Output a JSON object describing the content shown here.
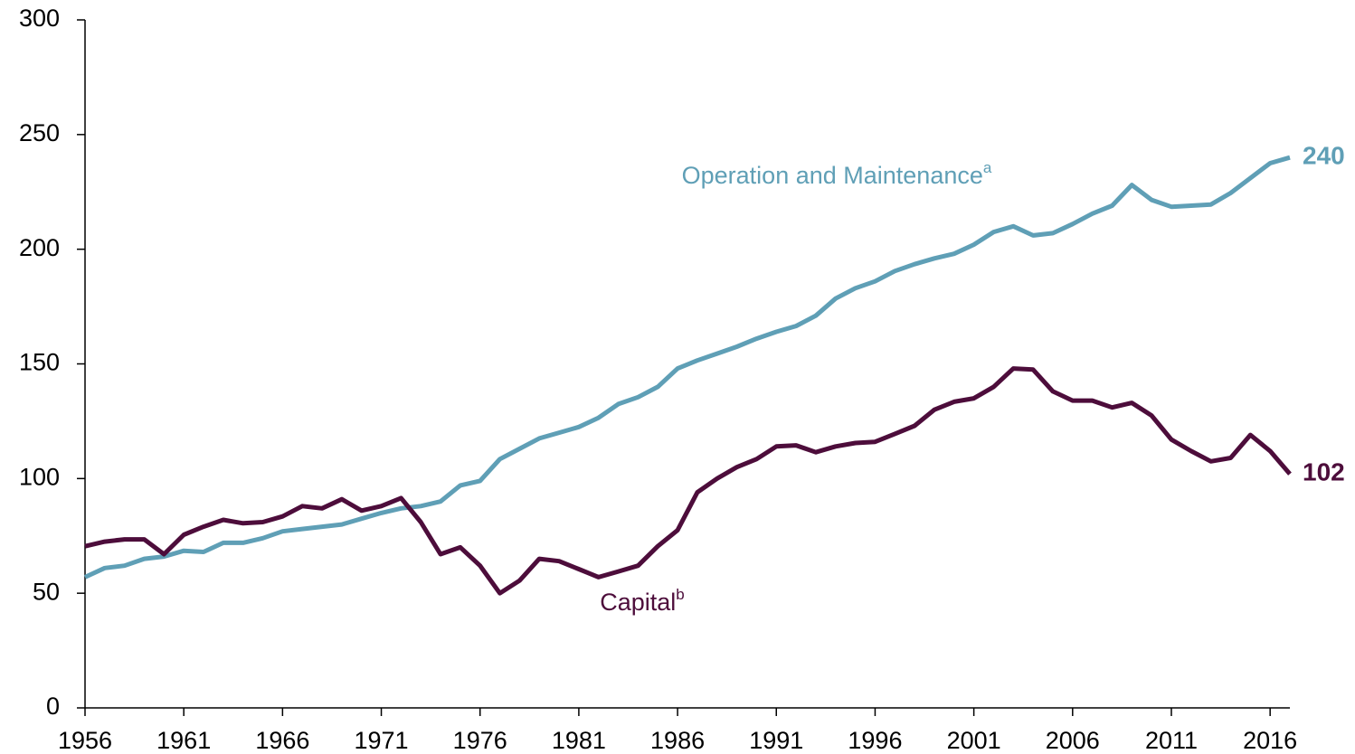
{
  "chart_data": {
    "type": "line",
    "x": [
      1956,
      1957,
      1958,
      1959,
      1960,
      1961,
      1962,
      1963,
      1964,
      1965,
      1966,
      1967,
      1968,
      1969,
      1970,
      1971,
      1972,
      1973,
      1974,
      1975,
      1976,
      1977,
      1978,
      1979,
      1980,
      1981,
      1982,
      1983,
      1984,
      1985,
      1986,
      1987,
      1988,
      1989,
      1990,
      1991,
      1992,
      1993,
      1994,
      1995,
      1996,
      1997,
      1998,
      1999,
      2000,
      2001,
      2002,
      2003,
      2004,
      2005,
      2006,
      2007,
      2008,
      2009,
      2010,
      2011,
      2012,
      2013,
      2014,
      2015,
      2016,
      2017
    ],
    "series": [
      {
        "name": "Operation and Maintenance",
        "footnote": "a",
        "color": "#5f9fb6",
        "values": [
          57,
          61,
          62,
          65,
          66,
          68.5,
          68,
          72,
          72,
          74,
          77,
          78,
          79,
          80,
          82.5,
          85,
          87,
          88,
          90,
          97,
          99,
          108.5,
          113,
          117.5,
          120,
          122.5,
          126.5,
          132.5,
          135.5,
          140,
          148,
          151.5,
          154.5,
          157.5,
          161,
          164,
          166.5,
          171,
          178.5,
          183,
          186,
          190.5,
          193.5,
          196,
          198,
          202,
          207.5,
          210,
          206,
          207,
          211,
          215.5,
          219,
          228,
          221.5,
          218.5,
          219,
          219.5,
          224.5,
          231,
          237.5,
          240
        ]
      },
      {
        "name": "Capital",
        "footnote": "b",
        "color": "#4d0d3b",
        "values": [
          70.5,
          72.5,
          73.5,
          73.5,
          67,
          75.5,
          79,
          82,
          80.5,
          81,
          83.5,
          88,
          87,
          91,
          86,
          88,
          91.5,
          81,
          67,
          70,
          62,
          50,
          55.5,
          65,
          64,
          60.5,
          57,
          59.5,
          62,
          70.5,
          77.5,
          94,
          100,
          105,
          108.5,
          114,
          114.5,
          111.5,
          114,
          115.5,
          116,
          119.5,
          123,
          130,
          133.5,
          135,
          140,
          148,
          147.5,
          138,
          134,
          134,
          131,
          133,
          127.5,
          117,
          112,
          107.5,
          109,
          119,
          112,
          102
        ]
      }
    ],
    "xlim": [
      1956,
      2017
    ],
    "xticks": [
      1956,
      1961,
      1966,
      1971,
      1976,
      1981,
      1986,
      1991,
      1996,
      2001,
      2006,
      2011,
      2016
    ],
    "ylim": [
      0,
      300
    ],
    "yticks": [
      0,
      50,
      100,
      150,
      200,
      250,
      300
    ],
    "grid": false
  }
}
